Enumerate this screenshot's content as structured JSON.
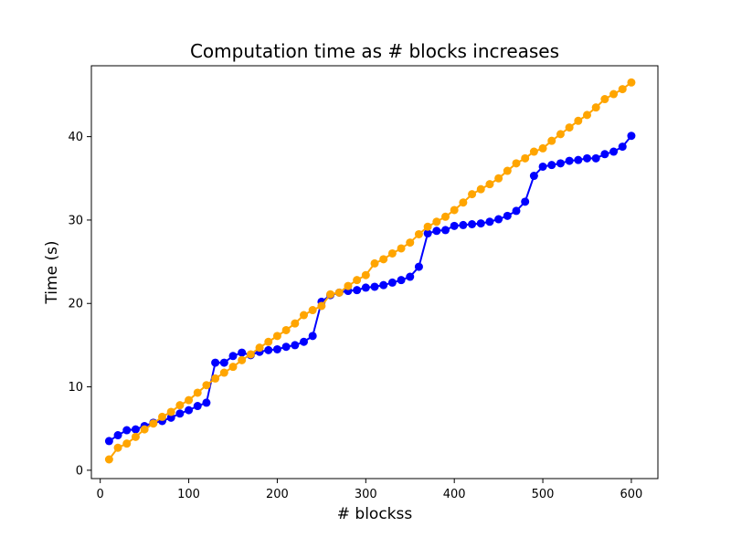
{
  "chart_data": {
    "type": "line",
    "title": "Computation time as # blocks increases",
    "xlabel": "# blockss",
    "ylabel": "Time (s)",
    "xlim": [
      -10,
      630
    ],
    "ylim": [
      -1,
      48.5
    ],
    "xticks": [
      0,
      100,
      200,
      300,
      400,
      500,
      600
    ],
    "yticks": [
      0,
      10,
      20,
      30,
      40
    ],
    "grid": false,
    "legend": "none",
    "x": [
      10,
      20,
      30,
      40,
      50,
      60,
      70,
      80,
      90,
      100,
      110,
      120,
      130,
      140,
      150,
      160,
      170,
      180,
      190,
      200,
      210,
      220,
      230,
      240,
      250,
      260,
      270,
      280,
      290,
      300,
      310,
      320,
      330,
      340,
      350,
      360,
      370,
      380,
      390,
      400,
      410,
      420,
      430,
      440,
      450,
      460,
      470,
      480,
      490,
      500,
      510,
      520,
      530,
      540,
      550,
      560,
      570,
      580,
      590,
      600
    ],
    "series": [
      {
        "color": "#0000ff",
        "values": [
          3.5,
          4.2,
          4.8,
          4.9,
          5.3,
          5.7,
          5.9,
          6.3,
          6.8,
          7.2,
          7.7,
          8.1,
          12.9,
          12.9,
          13.7,
          14.1,
          13.8,
          14.2,
          14.4,
          14.5,
          14.8,
          15.0,
          15.4,
          16.1,
          20.2,
          21.0,
          21.3,
          21.5,
          21.6,
          21.9,
          22.0,
          22.2,
          22.5,
          22.8,
          23.2,
          24.4,
          28.4,
          28.7,
          28.8,
          29.3,
          29.4,
          29.5,
          29.6,
          29.8,
          30.1,
          30.5,
          31.1,
          32.2,
          35.3,
          36.4,
          36.6,
          36.8,
          37.1,
          37.2,
          37.4,
          37.4,
          37.9,
          38.2,
          38.8,
          40.1
        ]
      },
      {
        "color": "#ffa500",
        "values": [
          1.3,
          2.7,
          3.2,
          4.0,
          4.9,
          5.6,
          6.4,
          7.0,
          7.8,
          8.4,
          9.3,
          10.2,
          11.0,
          11.7,
          12.4,
          13.2,
          13.9,
          14.7,
          15.4,
          16.1,
          16.8,
          17.6,
          18.6,
          19.2,
          19.7,
          21.1,
          21.3,
          22.1,
          22.8,
          23.4,
          24.8,
          25.3,
          26.0,
          26.6,
          27.3,
          28.3,
          29.2,
          29.8,
          30.4,
          31.2,
          32.1,
          33.1,
          33.7,
          34.3,
          35.0,
          35.9,
          36.8,
          37.4,
          38.2,
          38.6,
          39.5,
          40.3,
          41.1,
          41.9,
          42.6,
          43.5,
          44.5,
          45.1,
          45.7,
          46.5
        ]
      }
    ]
  }
}
